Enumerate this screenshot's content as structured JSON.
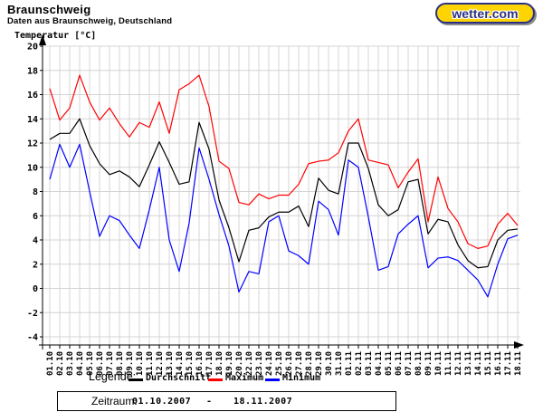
{
  "header": {
    "title": "Braunschweig",
    "subtitle": "Daten aus Braunschweig, Deutschland"
  },
  "logo": {
    "text": "wetter.com",
    "bg_color": "#ffd403",
    "text_color": "#2a3184"
  },
  "chart_data": {
    "type": "line",
    "ylabel": "Temperatur [°C]",
    "ylim": [
      -4,
      20
    ],
    "ytick_step": 2,
    "grid": true,
    "grid_color": "#d4d4d4",
    "legend_title": "Legende:",
    "legend_position": "bottom",
    "categories": [
      "01.10",
      "02.10",
      "03.10",
      "04.10",
      "05.10",
      "06.10",
      "07.10",
      "08.10",
      "09.10",
      "10.10",
      "11.10",
      "12.10",
      "13.10",
      "14.10",
      "15.10",
      "16.10",
      "17.10",
      "18.10",
      "19.10",
      "20.10",
      "22.10",
      "23.10",
      "24.10",
      "25.10",
      "26.10",
      "27.10",
      "28.10",
      "29.10",
      "30.10",
      "31.10",
      "01.11",
      "02.11",
      "03.11",
      "04.11",
      "05.11",
      "06.11",
      "07.11",
      "08.11",
      "09.11",
      "10.11",
      "11.11",
      "12.11",
      "13.11",
      "14.11",
      "15.11",
      "16.11",
      "17.11",
      "18.11"
    ],
    "series": [
      {
        "name": "Durchschnitt",
        "color": "#000000",
        "values": [
          12.3,
          12.8,
          12.8,
          14.0,
          11.8,
          10.3,
          9.4,
          9.7,
          9.2,
          8.4,
          10.2,
          12.1,
          10.4,
          8.6,
          8.8,
          13.7,
          11.5,
          7.3,
          5.0,
          2.2,
          4.8,
          5.0,
          5.9,
          6.3,
          6.3,
          6.8,
          5.1,
          9.1,
          8.1,
          7.8,
          12.0,
          12.0,
          9.9,
          6.9,
          6.0,
          6.5,
          8.8,
          9.0,
          4.5,
          5.7,
          5.5,
          3.6,
          2.3,
          1.7,
          1.8,
          4.0,
          4.8,
          4.9
        ]
      },
      {
        "name": "Maximum",
        "color": "#ff0000",
        "values": [
          16.5,
          13.9,
          14.9,
          17.6,
          15.4,
          13.9,
          14.9,
          13.6,
          12.5,
          13.7,
          13.3,
          15.4,
          12.8,
          16.4,
          16.9,
          17.6,
          15.0,
          10.5,
          9.9,
          7.1,
          6.9,
          7.8,
          7.4,
          7.7,
          7.7,
          8.6,
          10.3,
          10.5,
          10.6,
          11.2,
          13.0,
          14.0,
          10.6,
          10.4,
          10.2,
          8.3,
          9.6,
          10.7,
          5.5,
          9.2,
          6.6,
          5.5,
          3.7,
          3.3,
          3.5,
          5.3,
          6.2,
          5.2
        ]
      },
      {
        "name": "Minimum",
        "color": "#0000ff",
        "values": [
          9.0,
          11.9,
          10.0,
          11.9,
          8.0,
          4.3,
          6.0,
          5.6,
          4.4,
          3.3,
          6.5,
          10.0,
          4.0,
          1.4,
          5.4,
          11.6,
          9.0,
          6.1,
          3.5,
          -0.3,
          1.4,
          1.2,
          5.5,
          6.0,
          3.1,
          2.7,
          2.0,
          7.2,
          6.5,
          4.4,
          10.6,
          10.0,
          5.9,
          1.5,
          1.8,
          4.5,
          5.3,
          6.0,
          1.7,
          2.5,
          2.6,
          2.3,
          1.5,
          0.7,
          -0.7,
          2.0,
          4.1,
          4.4
        ]
      }
    ]
  },
  "footer": {
    "label": "Zeitraum:",
    "from": "01.10.2007",
    "separator": "-",
    "to": "18.11.2007"
  }
}
